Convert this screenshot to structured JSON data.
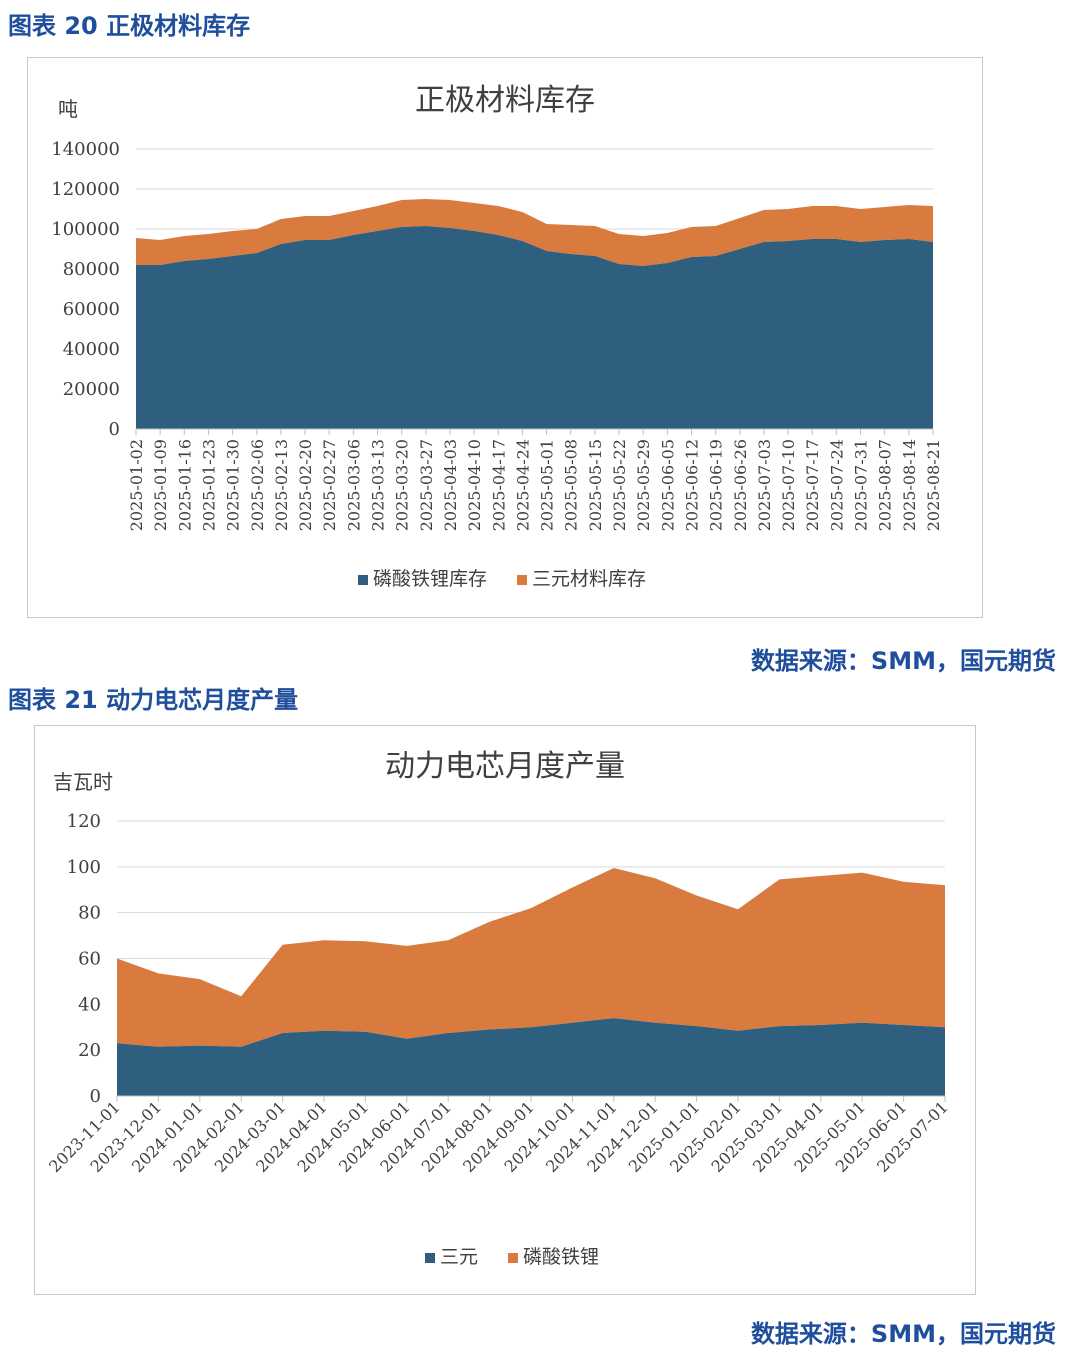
{
  "figures": [
    {
      "caption": "图表 20 正极材料库存",
      "source": "数据来源：SMM，国元期货"
    },
    {
      "caption": "图表 21 动力电芯月度产量",
      "source": "数据来源：SMM，国元期货"
    }
  ],
  "colors": {
    "bottom": "#2e5f7e",
    "top": "#d97b3f",
    "grid": "#d9d9d9",
    "axis": "#bfbfbf"
  },
  "chart_data": [
    {
      "type": "area",
      "stacked": true,
      "title": "正极材料库存",
      "unit": "吨",
      "ylim": [
        0,
        140000
      ],
      "yticks": [
        0,
        20000,
        40000,
        60000,
        80000,
        100000,
        120000,
        140000
      ],
      "grid": true,
      "legend_position": "bottom",
      "x": [
        "2025-01-02",
        "2025-01-09",
        "2025-01-16",
        "2025-01-23",
        "2025-01-30",
        "2025-02-06",
        "2025-02-13",
        "2025-02-20",
        "2025-02-27",
        "2025-03-06",
        "2025-03-13",
        "2025-03-20",
        "2025-03-27",
        "2025-04-03",
        "2025-04-10",
        "2025-04-17",
        "2025-04-24",
        "2025-05-01",
        "2025-05-08",
        "2025-05-15",
        "2025-05-22",
        "2025-05-29",
        "2025-06-05",
        "2025-06-12",
        "2025-06-19",
        "2025-06-26",
        "2025-07-03",
        "2025-07-10",
        "2025-07-17",
        "2025-07-24",
        "2025-07-31",
        "2025-08-07",
        "2025-08-14",
        "2025-08-21"
      ],
      "series": [
        {
          "name": "磷酸铁锂库存",
          "values": [
            82000,
            82000,
            84000,
            85000,
            86500,
            88000,
            92500,
            94500,
            94500,
            97000,
            99000,
            101000,
            101500,
            100500,
            99000,
            97000,
            94000,
            89000,
            87500,
            86500,
            82500,
            81500,
            83000,
            86000,
            86500,
            90000,
            93500,
            94000,
            95000,
            95000,
            93500,
            94500,
            95000,
            93500
          ]
        },
        {
          "name": "三元材料库存",
          "values": [
            13500,
            12500,
            12500,
            12500,
            12500,
            12000,
            12500,
            12000,
            12000,
            12000,
            12500,
            13500,
            13500,
            14000,
            14000,
            14500,
            14500,
            13500,
            14500,
            15000,
            15000,
            15000,
            15000,
            15000,
            15000,
            15500,
            16000,
            16000,
            16500,
            16500,
            16500,
            16500,
            17000,
            18000
          ]
        }
      ]
    },
    {
      "type": "area",
      "stacked": true,
      "title": "动力电芯月度产量",
      "unit": "吉瓦时",
      "ylim": [
        0,
        120
      ],
      "yticks": [
        0,
        20,
        40,
        60,
        80,
        100,
        120
      ],
      "grid": true,
      "legend_position": "bottom",
      "x": [
        "2023-11-01",
        "2023-12-01",
        "2024-01-01",
        "2024-02-01",
        "2024-03-01",
        "2024-04-01",
        "2024-05-01",
        "2024-06-01",
        "2024-07-01",
        "2024-08-01",
        "2024-09-01",
        "2024-10-01",
        "2024-11-01",
        "2024-12-01",
        "2025-01-01",
        "2025-02-01",
        "2025-03-01",
        "2025-04-01",
        "2025-05-01",
        "2025-06-01",
        "2025-07-01"
      ],
      "series": [
        {
          "name": "三元",
          "values": [
            23,
            21.5,
            22,
            21.5,
            27.5,
            28.5,
            28,
            25,
            27.5,
            29,
            30,
            32,
            34,
            32,
            30.5,
            28.5,
            30.5,
            31,
            32,
            31,
            30
          ]
        },
        {
          "name": "磷酸铁锂",
          "values": [
            37,
            32,
            29,
            22,
            38.5,
            39.5,
            39.5,
            40.5,
            40.5,
            47,
            52,
            59,
            65.5,
            63,
            57,
            53,
            64,
            65,
            65.5,
            62.5,
            62
          ]
        }
      ]
    }
  ]
}
